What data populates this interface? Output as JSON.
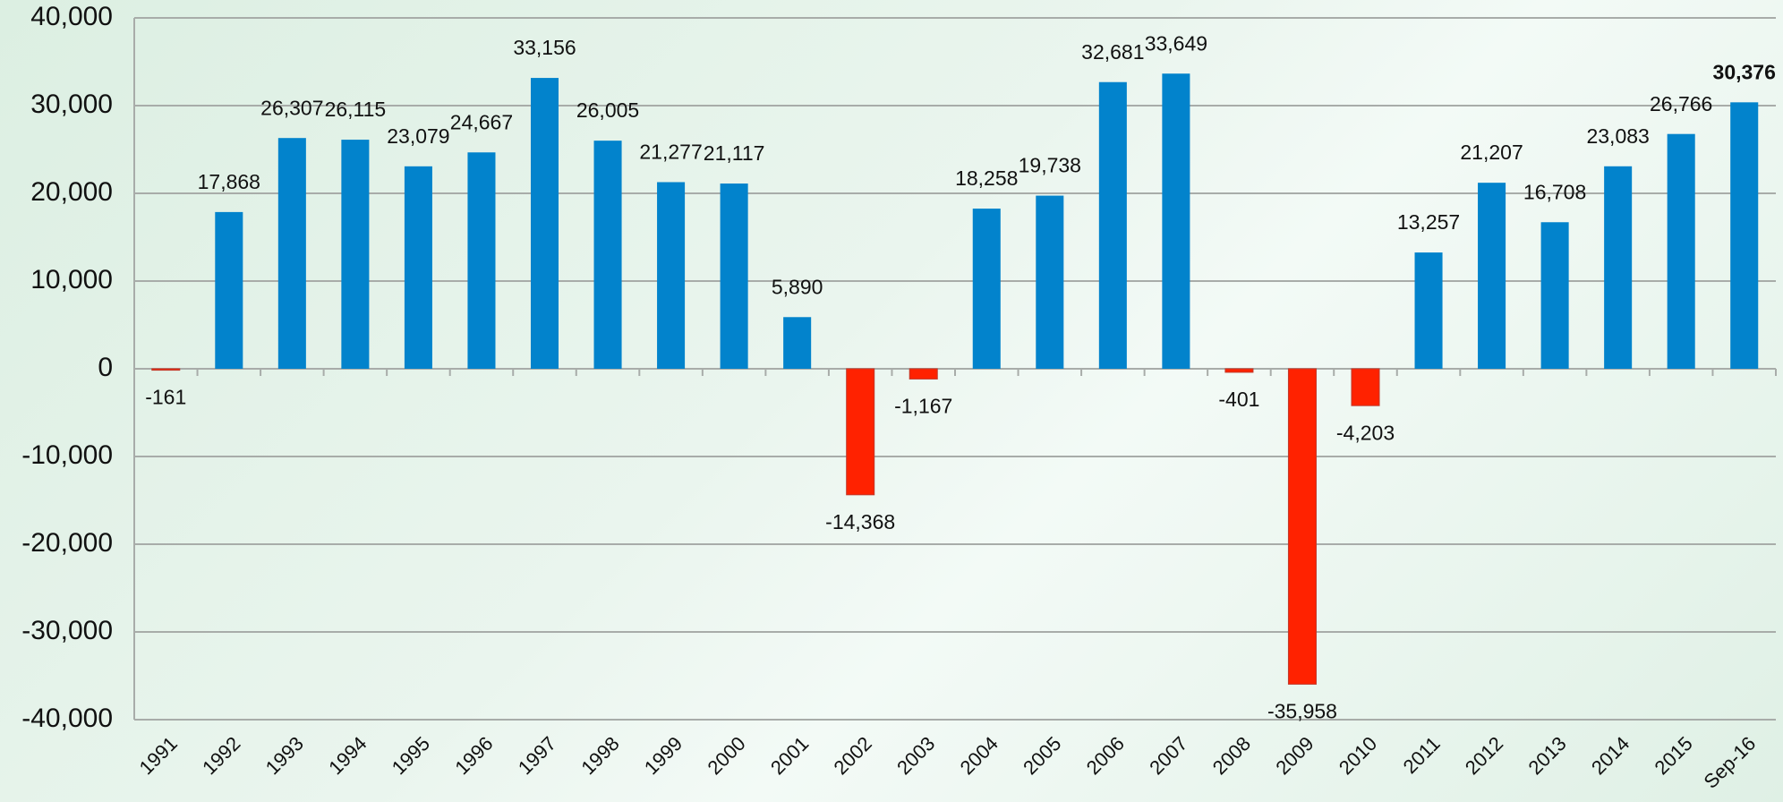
{
  "chart_data": {
    "type": "bar",
    "categories": [
      "1991",
      "1992",
      "1993",
      "1994",
      "1995",
      "1996",
      "1997",
      "1998",
      "1999",
      "2000",
      "2001",
      "2002",
      "2003",
      "2004",
      "2005",
      "2006",
      "2007",
      "2008",
      "2009",
      "2010",
      "2011",
      "2012",
      "2013",
      "2014",
      "2015",
      "Sep-16"
    ],
    "values": [
      -161,
      17868,
      26307,
      26115,
      23079,
      24667,
      33156,
      26005,
      21277,
      21117,
      5890,
      -14368,
      -1167,
      18258,
      19738,
      32681,
      33649,
      -401,
      -35958,
      -4203,
      13257,
      21207,
      16708,
      23083,
      26766,
      30376
    ],
    "value_labels": [
      "-161",
      "17,868",
      "26,307",
      "26,115",
      "23,079",
      "24,667",
      "33,156",
      "26,005",
      "21,277",
      "21,117",
      "5,890",
      "-14,368",
      "-1,167",
      "18,258",
      "19,738",
      "32,681",
      "33,649",
      "-401",
      "-35,958",
      "-4,203",
      "13,257",
      "21,207",
      "16,708",
      "23,083",
      "26,766",
      "30,376"
    ],
    "color": "#0283cc",
    "negative_color": "#ff2200",
    "highlight_last": true,
    "ylim": [
      -40000,
      40000
    ],
    "yticks": [
      {
        "value": -40000,
        "label": "-40,000"
      },
      {
        "value": -30000,
        "label": "-30,000"
      },
      {
        "value": -20000,
        "label": "-20,000"
      },
      {
        "value": -10000,
        "label": "-10,000"
      },
      0,
      {
        "value": 10000,
        "label": "10,000"
      },
      {
        "value": 20000,
        "label": "20,000"
      },
      {
        "value": 30000,
        "label": "30,000"
      },
      {
        "value": 40000,
        "label": "40,000"
      }
    ],
    "grid": true
  }
}
